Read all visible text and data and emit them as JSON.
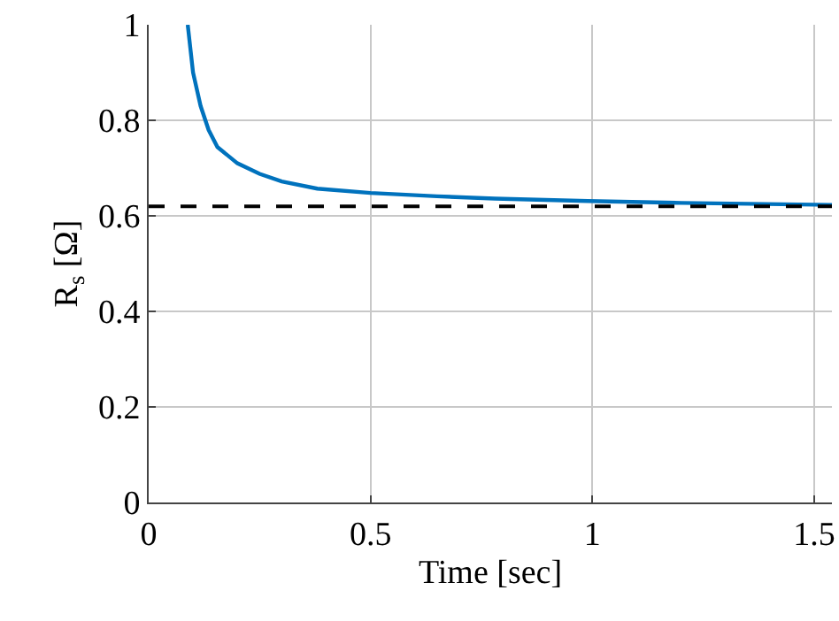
{
  "chart_data": {
    "type": "line",
    "xlabel": "Time [sec]",
    "ylabel": "R$_{s}$ [Ω]",
    "x": [
      0.088,
      0.1,
      0.117,
      0.135,
      0.155,
      0.2,
      0.25,
      0.3,
      0.38,
      0.5,
      0.65,
      0.78,
      0.99,
      1.2,
      1.54
    ],
    "series": [
      {
        "color": "#0072bd",
        "values": [
          1,
          0.9,
          0.83,
          0.78,
          0.744,
          0.71,
          0.688,
          0.672,
          0.657,
          0.648,
          0.641,
          0.636,
          0.631,
          0.627,
          0.623
        ]
      }
    ],
    "ref_lines": [
      {
        "axis": "y",
        "value": 0.62,
        "color": "#000000",
        "line_style": "dashed"
      }
    ],
    "xlim": [
      0,
      1.54
    ],
    "xticks": [
      0,
      0.5,
      1,
      1.5
    ],
    "ylim": [
      0,
      1
    ],
    "yticks": [
      0,
      0.2,
      0.4,
      0.6,
      0.8,
      1
    ],
    "grid": true,
    "line_style": "solid",
    "marker": "none"
  }
}
